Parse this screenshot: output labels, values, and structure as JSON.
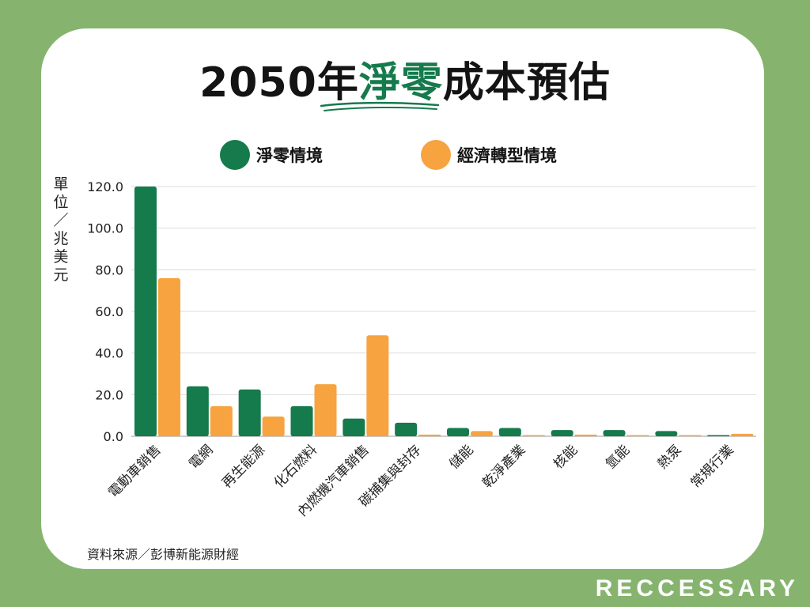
{
  "title": {
    "prefix": "2050年",
    "highlight": "淨零",
    "suffix": "成本預估"
  },
  "legend": [
    {
      "label": "淨零情境",
      "color": "#157a4c"
    },
    {
      "label": "經濟轉型情境",
      "color": "#f7a340"
    }
  ],
  "y_unit": "單位／兆美元",
  "source": "資料來源／彭博新能源財經",
  "brand": "RECCESSARY",
  "colors": {
    "background": "#86b46e",
    "net_zero": "#157a4c",
    "economic_transition": "#f7a340"
  },
  "chart_data": {
    "type": "bar",
    "categories": [
      "電動車銷售",
      "電網",
      "再生能源",
      "化石燃料",
      "內燃機汽車銷售",
      "碳捕集與封存",
      "儲能",
      "乾淨產業",
      "核能",
      "氫能",
      "熱泵",
      "常規行業"
    ],
    "series": [
      {
        "name": "淨零情境",
        "values": [
          120.0,
          24.0,
          22.5,
          14.5,
          8.5,
          6.5,
          4.0,
          4.0,
          3.0,
          3.0,
          2.5,
          0.3
        ]
      },
      {
        "name": "經濟轉型情境",
        "values": [
          76.0,
          14.5,
          9.5,
          25.0,
          48.5,
          0.8,
          2.5,
          0.3,
          0.8,
          0.3,
          0.3,
          1.2
        ]
      }
    ],
    "yticks": [
      "0.0",
      "20.0",
      "40.0",
      "60.0",
      "80.0",
      "100.0",
      "120.0"
    ],
    "ylim": [
      0,
      120
    ],
    "grid": true
  }
}
